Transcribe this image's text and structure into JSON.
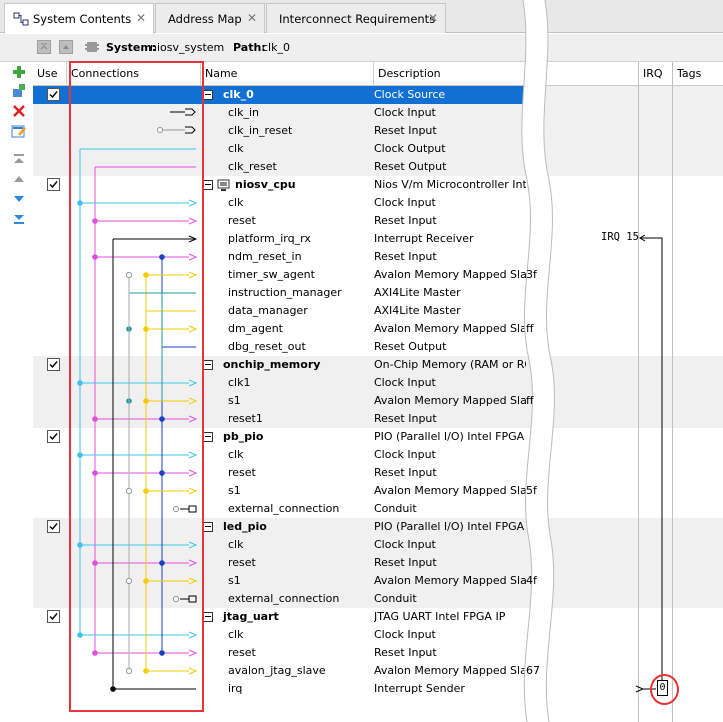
{
  "tabs": [
    {
      "label": "System Contents",
      "icon": "system-contents-icon",
      "active": true
    },
    {
      "label": "Address Map",
      "icon": "",
      "active": false
    },
    {
      "label": "Interconnect Requirements",
      "icon": "",
      "active": false
    }
  ],
  "sysbar": {
    "system_label": "System:",
    "system_value": "niosv_system",
    "path_label": "Path:",
    "path_value": "clk_0"
  },
  "columns": {
    "use": "Use",
    "connections": "Connections",
    "name": "Name",
    "description": "Description",
    "irq": "IRQ",
    "tags": "Tags"
  },
  "irq_label": "IRQ 15",
  "irq_value": "0",
  "colors": {
    "selection": "#1270d2",
    "highlight": "#e8333a",
    "cyan": "#3cc4ee",
    "magenta": "#e44ee0",
    "yellow": "#f5cc00",
    "blue": "#1a3fc0",
    "teal": "#1f9b9b",
    "black": "#000000",
    "grey": "#9a9a9a"
  },
  "rows": [
    {
      "name": "clk_0",
      "desc": "Clock Source",
      "component": true,
      "checked": true,
      "selected": true,
      "shade": false
    },
    {
      "name": "clk_in",
      "desc": "Clock Input"
    },
    {
      "name": "clk_in_reset",
      "desc": "Reset Input"
    },
    {
      "name": "clk",
      "desc": "Clock Output"
    },
    {
      "name": "clk_reset",
      "desc": "Reset Output"
    },
    {
      "name": "niosv_cpu",
      "desc": "Nios V/m Microcontroller Inte",
      "component": true,
      "checked": true,
      "icon": "processor-icon"
    },
    {
      "name": "clk",
      "desc": "Clock Input"
    },
    {
      "name": "reset",
      "desc": "Reset Input"
    },
    {
      "name": "platform_irq_rx",
      "desc": "Interrupt Receiver"
    },
    {
      "name": "ndm_reset_in",
      "desc": "Reset Input"
    },
    {
      "name": "timer_sw_agent",
      "desc": "Avalon Memory Mapped Slave",
      "hex": "3f"
    },
    {
      "name": "instruction_manager",
      "desc": "AXI4Lite Master"
    },
    {
      "name": "data_manager",
      "desc": "AXI4Lite Master"
    },
    {
      "name": "dm_agent",
      "desc": "Avalon Memory Mapped Slave",
      "hex": "ff"
    },
    {
      "name": "dbg_reset_out",
      "desc": "Reset Output"
    },
    {
      "name": "onchip_memory",
      "desc": "On-Chip Memory (RAM or RO",
      "component": true,
      "checked": true
    },
    {
      "name": "clk1",
      "desc": "Clock Input"
    },
    {
      "name": "s1",
      "desc": "Avalon Memory Mapped Slave",
      "hex": "ff"
    },
    {
      "name": "reset1",
      "desc": "Reset Input"
    },
    {
      "name": "pb_pio",
      "desc": "PIO (Parallel I/O) Intel FPGA I",
      "component": true,
      "checked": true
    },
    {
      "name": "clk",
      "desc": "Clock Input"
    },
    {
      "name": "reset",
      "desc": "Reset Input"
    },
    {
      "name": "s1",
      "desc": "Avalon Memory Mapped Slave",
      "hex": "5f"
    },
    {
      "name": "external_connection",
      "desc": "Conduit"
    },
    {
      "name": "led_pio",
      "desc": "PIO (Parallel I/O) Intel FPGA",
      "component": true,
      "checked": true
    },
    {
      "name": "clk",
      "desc": "Clock Input"
    },
    {
      "name": "reset",
      "desc": "Reset Input"
    },
    {
      "name": "s1",
      "desc": "Avalon Memory Mapped Slave",
      "hex": "4f"
    },
    {
      "name": "external_connection",
      "desc": "Conduit"
    },
    {
      "name": "jtag_uart",
      "desc": "JTAG UART Intel FPGA IP",
      "component": true,
      "checked": true
    },
    {
      "name": "clk",
      "desc": "Clock Input"
    },
    {
      "name": "reset",
      "desc": "Reset Input"
    },
    {
      "name": "avalon_jtag_slave",
      "desc": "Avalon Memory Mapped Slave",
      "hex": "67"
    },
    {
      "name": "irq",
      "desc": "Interrupt Sender"
    }
  ]
}
